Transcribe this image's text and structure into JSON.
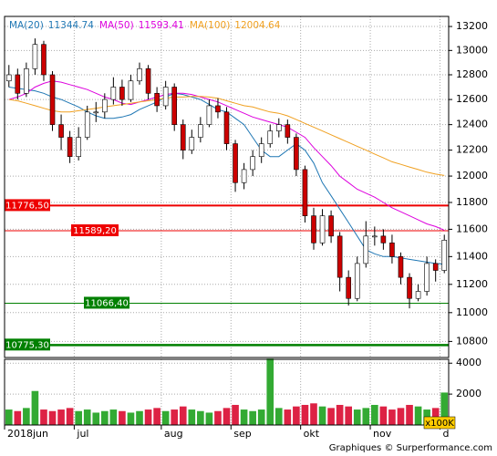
{
  "chart_data": {
    "type": "candlestick",
    "log_scale": true,
    "grid": true,
    "categories": [
      "2018jun",
      null,
      null,
      null,
      null,
      null,
      null,
      null,
      "jul",
      null,
      null,
      null,
      null,
      null,
      null,
      null,
      null,
      null,
      "aug",
      null,
      null,
      null,
      null,
      null,
      null,
      null,
      "sep",
      null,
      null,
      null,
      null,
      null,
      null,
      null,
      "okt",
      null,
      null,
      null,
      null,
      null,
      null,
      null,
      "nov",
      null,
      null,
      null,
      null,
      null,
      null,
      null,
      "d"
    ],
    "open": [
      12750,
      12800,
      12650,
      12850,
      13050,
      12800,
      12400,
      12300,
      12150,
      12300,
      12500,
      12500,
      12600,
      12700,
      12600,
      12750,
      12850,
      12650,
      12550,
      12700,
      12400,
      12200,
      12300,
      12400,
      12550,
      12500,
      12250,
      11950,
      12050,
      12150,
      12250,
      12350,
      12400,
      12300,
      12050,
      11700,
      11500,
      11700,
      11550,
      11250,
      11100,
      11350,
      11550,
      11550,
      11500,
      11400,
      11250,
      11100,
      11150,
      11350,
      11300
    ],
    "high": [
      12880,
      12850,
      12900,
      13100,
      13080,
      12830,
      12480,
      12350,
      12380,
      12550,
      12580,
      12650,
      12780,
      12760,
      12800,
      12900,
      12880,
      12700,
      12750,
      12730,
      12440,
      12360,
      12460,
      12600,
      12610,
      12540,
      12280,
      12100,
      12200,
      12300,
      12400,
      12450,
      12440,
      12330,
      12080,
      11760,
      11750,
      11740,
      11580,
      11300,
      11400,
      11660,
      11620,
      11600,
      11560,
      11430,
      11280,
      11200,
      11400,
      11380,
      11560
    ],
    "low": [
      12700,
      12600,
      12620,
      12800,
      12750,
      12350,
      12200,
      12100,
      12120,
      12280,
      12420,
      12450,
      12560,
      12550,
      12580,
      12720,
      12600,
      12500,
      12520,
      12350,
      12130,
      12170,
      12260,
      12380,
      12450,
      12200,
      11880,
      11900,
      12000,
      12100,
      12220,
      12300,
      12250,
      12000,
      11650,
      11450,
      11480,
      11500,
      11150,
      11050,
      11080,
      11320,
      11480,
      11450,
      11350,
      11200,
      11030,
      11080,
      11120,
      11220,
      11280
    ],
    "close": [
      12800,
      12650,
      12850,
      13050,
      12800,
      12400,
      12300,
      12150,
      12300,
      12500,
      12500,
      12600,
      12700,
      12600,
      12750,
      12850,
      12650,
      12550,
      12700,
      12400,
      12200,
      12300,
      12400,
      12550,
      12500,
      12250,
      11950,
      12050,
      12150,
      12250,
      12350,
      12400,
      12300,
      12050,
      11700,
      11500,
      11700,
      11550,
      11250,
      11100,
      11350,
      11550,
      11550,
      11500,
      11400,
      11250,
      11100,
      11150,
      11350,
      11300,
      11520
    ],
    "up_color": "#ffffff",
    "down_color": "#cc0000",
    "ylim": [
      10690,
      13285
    ],
    "yticks": [
      10800,
      11000,
      11200,
      11400,
      11600,
      11800,
      12000,
      12200,
      12400,
      12600,
      12800,
      13000,
      13200
    ],
    "moving_averages": [
      {
        "name": "MA(20)",
        "last": 11344.74,
        "color": "#1f77b4",
        "values": [
          12700,
          12690,
          12680,
          12670,
          12650,
          12620,
          12600,
          12570,
          12540,
          12500,
          12470,
          12450,
          12450,
          12460,
          12480,
          12520,
          12550,
          12580,
          12620,
          12650,
          12640,
          12620,
          12600,
          12560,
          12520,
          12500,
          12450,
          12400,
          12300,
          12200,
          12150,
          12150,
          12200,
          12250,
          12200,
          12100,
          11950,
          11850,
          11750,
          11650,
          11550,
          11450,
          11420,
          11400,
          11400,
          11390,
          11380,
          11370,
          11360,
          11350,
          11344.74
        ]
      },
      {
        "name": "MA(50)",
        "last": 11593.41,
        "color": "#dd00dd",
        "values": [
          12600,
          12620,
          12650,
          12700,
          12730,
          12750,
          12740,
          12720,
          12700,
          12680,
          12650,
          12620,
          12600,
          12570,
          12560,
          12580,
          12600,
          12620,
          12640,
          12650,
          12650,
          12640,
          12620,
          12600,
          12580,
          12550,
          12520,
          12490,
          12460,
          12440,
          12420,
          12400,
          12380,
          12340,
          12300,
          12220,
          12150,
          12080,
          12000,
          11950,
          11900,
          11870,
          11840,
          11800,
          11760,
          11730,
          11700,
          11670,
          11640,
          11620,
          11593.41
        ]
      },
      {
        "name": "MA(100)",
        "last": 12004.64,
        "color": "#f0a020",
        "values": [
          12600,
          12590,
          12570,
          12550,
          12530,
          12510,
          12500,
          12500,
          12510,
          12520,
          12530,
          12540,
          12550,
          12560,
          12570,
          12580,
          12590,
          12600,
          12610,
          12620,
          12620,
          12625,
          12625,
          12620,
          12610,
          12590,
          12570,
          12550,
          12540,
          12520,
          12500,
          12490,
          12470,
          12440,
          12410,
          12380,
          12350,
          12320,
          12290,
          12260,
          12230,
          12200,
          12170,
          12140,
          12110,
          12090,
          12070,
          12050,
          12030,
          12015,
          12004.64
        ]
      }
    ],
    "levels": [
      {
        "value": 11776.5,
        "label": "11776,50",
        "color": "#ee0000"
      },
      {
        "value": 11589.2,
        "label": "11589,20",
        "color": "#ee0000"
      },
      {
        "value": 11066.4,
        "label": "11066,40",
        "color": "#008000"
      },
      {
        "value": 10775.3,
        "label": "10775,30",
        "color": "#008000"
      }
    ],
    "volume": {
      "values": [
        1000,
        900,
        1100,
        2200,
        1000,
        900,
        1000,
        1100,
        900,
        1000,
        800,
        900,
        1000,
        900,
        800,
        900,
        1000,
        1100,
        900,
        1000,
        1200,
        1000,
        900,
        800,
        900,
        1100,
        1300,
        1000,
        900,
        1000,
        4300,
        1100,
        1000,
        1200,
        1300,
        1400,
        1200,
        1100,
        1300,
        1200,
        1000,
        1100,
        1300,
        1200,
        1000,
        1100,
        1300,
        1200,
        1000,
        1100,
        2100
      ],
      "ylim": [
        0,
        4250
      ],
      "yticks": [
        2000,
        4000
      ],
      "unit": "x100K"
    },
    "footer": "Graphiques © Surperformance.com"
  }
}
